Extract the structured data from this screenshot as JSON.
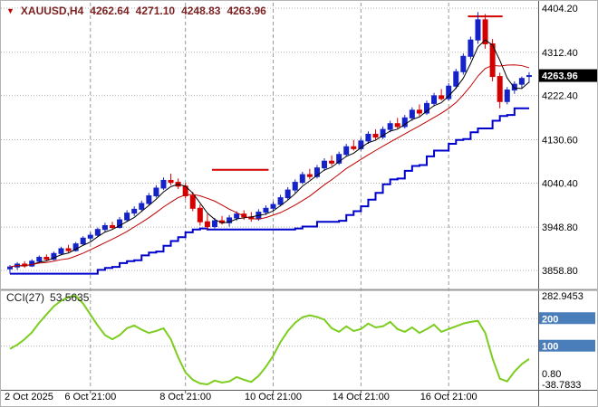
{
  "quote": {
    "symbol": "XAUUSD,H4",
    "open": "4262.64",
    "high": "4271.10",
    "low": "4248.83",
    "close": "4263.96"
  },
  "price_axis": {
    "labels": [
      "4404.20",
      "4312.40",
      "4222.40",
      "4130.60",
      "4040.40",
      "3948.80",
      "3858.80"
    ],
    "values": [
      4404.2,
      4312.4,
      4222.4,
      4130.6,
      4040.4,
      3948.8,
      3858.8
    ],
    "max": 4404.2,
    "min": 3858.8,
    "current_label": "4263.96",
    "current_value": 4263.96
  },
  "time_axis": {
    "edge_label": "2 Oct 2025",
    "gridlines": [
      {
        "label": "6 Oct 21:00",
        "index": 11
      },
      {
        "label": "8 Oct 21:00",
        "index": 24
      },
      {
        "label": "10 Oct 21:00",
        "index": 36
      },
      {
        "label": "14 Oct 21:00",
        "index": 48
      },
      {
        "label": "16 Oct 21:00",
        "index": 60
      }
    ]
  },
  "chart_data": {
    "type": "candlestick",
    "title": "XAUUSD H4 with moving averages, support step line and CCI(27)",
    "ylim": [
      3858.8,
      4404.2
    ],
    "candles": [
      [
        3862,
        3870,
        3852,
        3866
      ],
      [
        3866,
        3876,
        3860,
        3872
      ],
      [
        3872,
        3878,
        3864,
        3868
      ],
      [
        3868,
        3882,
        3866,
        3878
      ],
      [
        3878,
        3890,
        3874,
        3886
      ],
      [
        3886,
        3892,
        3878,
        3882
      ],
      [
        3882,
        3898,
        3880,
        3894
      ],
      [
        3894,
        3908,
        3890,
        3904
      ],
      [
        3904,
        3912,
        3896,
        3900
      ],
      [
        3900,
        3918,
        3898,
        3914
      ],
      [
        3914,
        3930,
        3910,
        3926
      ],
      [
        3926,
        3938,
        3920,
        3932
      ],
      [
        3932,
        3948,
        3928,
        3944
      ],
      [
        3944,
        3958,
        3938,
        3952
      ],
      [
        3952,
        3960,
        3944,
        3948
      ],
      [
        3948,
        3970,
        3946,
        3964
      ],
      [
        3964,
        3984,
        3960,
        3978
      ],
      [
        3978,
        3992,
        3972,
        3986
      ],
      [
        3986,
        4004,
        3982,
        3998
      ],
      [
        3998,
        4020,
        3994,
        4014
      ],
      [
        4014,
        4036,
        4010,
        4030
      ],
      [
        4030,
        4052,
        4026,
        4046
      ],
      [
        4046,
        4060,
        4036,
        4042
      ],
      [
        4042,
        4050,
        4028,
        4034
      ],
      [
        4034,
        4040,
        4008,
        4014
      ],
      [
        4014,
        4022,
        3982,
        3988
      ],
      [
        3988,
        3996,
        3952,
        3960
      ],
      [
        3960,
        3976,
        3944,
        3950
      ],
      [
        3950,
        3968,
        3946,
        3962
      ],
      [
        3962,
        3972,
        3954,
        3958
      ],
      [
        3958,
        3974,
        3950,
        3968
      ],
      [
        3968,
        3982,
        3962,
        3976
      ],
      [
        3976,
        3984,
        3964,
        3970
      ],
      [
        3970,
        3980,
        3960,
        3966
      ],
      [
        3966,
        3986,
        3962,
        3980
      ],
      [
        3980,
        3994,
        3974,
        3988
      ],
      [
        3988,
        4002,
        3982,
        3996
      ],
      [
        3996,
        4016,
        3992,
        4010
      ],
      [
        4010,
        4032,
        4006,
        4026
      ],
      [
        4026,
        4048,
        4020,
        4042
      ],
      [
        4042,
        4064,
        4038,
        4058
      ],
      [
        4058,
        4070,
        4048,
        4054
      ],
      [
        4054,
        4078,
        4050,
        4072
      ],
      [
        4072,
        4092,
        4066,
        4086
      ],
      [
        4086,
        4098,
        4076,
        4082
      ],
      [
        4082,
        4106,
        4078,
        4100
      ],
      [
        4100,
        4122,
        4096,
        4116
      ],
      [
        4116,
        4130,
        4108,
        4112
      ],
      [
        4112,
        4134,
        4108,
        4128
      ],
      [
        4128,
        4148,
        4122,
        4142
      ],
      [
        4142,
        4152,
        4130,
        4136
      ],
      [
        4136,
        4158,
        4132,
        4152
      ],
      [
        4152,
        4170,
        4146,
        4164
      ],
      [
        4164,
        4176,
        4154,
        4158
      ],
      [
        4158,
        4182,
        4154,
        4176
      ],
      [
        4176,
        4198,
        4170,
        4192
      ],
      [
        4192,
        4204,
        4180,
        4186
      ],
      [
        4186,
        4212,
        4182,
        4206
      ],
      [
        4206,
        4228,
        4200,
        4222
      ],
      [
        4222,
        4236,
        4212,
        4216
      ],
      [
        4216,
        4248,
        4212,
        4242
      ],
      [
        4242,
        4278,
        4236,
        4272
      ],
      [
        4272,
        4310,
        4266,
        4304
      ],
      [
        4304,
        4345,
        4298,
        4338
      ],
      [
        4338,
        4396,
        4330,
        4380
      ],
      [
        4380,
        4392,
        4320,
        4330
      ],
      [
        4330,
        4340,
        4252,
        4262
      ],
      [
        4262,
        4270,
        4196,
        4210
      ],
      [
        4210,
        4240,
        4204,
        4234
      ],
      [
        4234,
        4252,
        4226,
        4246
      ],
      [
        4246,
        4262,
        4238,
        4258
      ],
      [
        4262.64,
        4271.1,
        4248.83,
        4263.96
      ]
    ],
    "resistance_segments": [
      {
        "price": 4068,
        "from_index": 28,
        "to_index": 35
      },
      {
        "price": 4387,
        "from_index": 63,
        "to_index": 67
      }
    ],
    "indicator": {
      "label": "CCI(27)",
      "value": "53.5635",
      "max": 282.9453,
      "min": -38.7833,
      "max_label": "282.9453",
      "min_label": "-38.7833",
      "levels": [
        200,
        100
      ],
      "level_labels": [
        "200",
        "100"
      ],
      "extra_label": "0.80",
      "values": [
        90,
        105,
        125,
        150,
        185,
        215,
        245,
        265,
        278,
        282.9453,
        255,
        215,
        175,
        140,
        125,
        140,
        165,
        175,
        160,
        148,
        155,
        165,
        125,
        60,
        5,
        -22,
        -35,
        -38.7833,
        -25,
        -32,
        -28,
        -12,
        -22,
        -30,
        -8,
        25,
        65,
        115,
        155,
        185,
        205,
        212,
        206,
        196,
        165,
        152,
        172,
        155,
        162,
        182,
        168,
        172,
        188,
        162,
        152,
        168,
        148,
        162,
        178,
        152,
        162,
        172,
        182,
        188,
        192,
        148,
        55,
        -18,
        -28,
        8,
        35,
        53.5635
      ]
    }
  },
  "colors": {
    "bull": "#1422c8",
    "bear": "#d40000",
    "ma_fast": "#000000",
    "ma_slow": "#c00000",
    "support_line": "#0000cd",
    "cci": "#7ccd1f",
    "level_box": "#4a7ebb",
    "price_tag_bg": "#000000",
    "grid": "#b0b0b0",
    "vgrid": "#999999",
    "axis": "#555555",
    "quote_text": "#7b2121"
  }
}
